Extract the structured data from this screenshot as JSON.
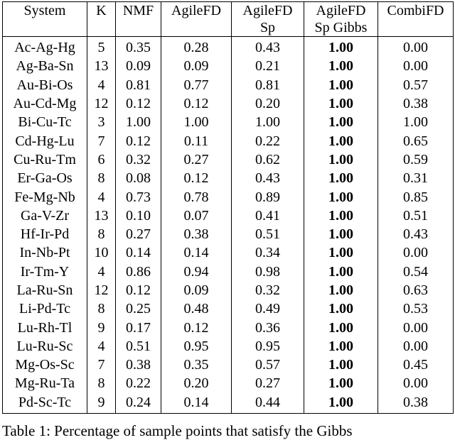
{
  "table": {
    "columns": [
      {
        "line1": "System",
        "line2": ""
      },
      {
        "line1": "K",
        "line2": ""
      },
      {
        "line1": "NMF",
        "line2": ""
      },
      {
        "line1": "AgileFD",
        "line2": ""
      },
      {
        "line1": "AgileFD",
        "line2": "Sp"
      },
      {
        "line1": "AgileFD",
        "line2": "Sp Gibbs"
      },
      {
        "line1": "CombiFD",
        "line2": ""
      }
    ],
    "rows": [
      [
        "Ac-Ag-Hg",
        "5",
        "0.35",
        "0.28",
        "0.43",
        "1.00",
        "0.00"
      ],
      [
        "Ag-Ba-Sn",
        "13",
        "0.09",
        "0.09",
        "0.21",
        "1.00",
        "0.00"
      ],
      [
        "Au-Bi-Os",
        "4",
        "0.81",
        "0.77",
        "0.81",
        "1.00",
        "0.57"
      ],
      [
        "Au-Cd-Mg",
        "12",
        "0.12",
        "0.12",
        "0.20",
        "1.00",
        "0.38"
      ],
      [
        "Bi-Cu-Tc",
        "3",
        "1.00",
        "1.00",
        "1.00",
        "1.00",
        "1.00"
      ],
      [
        "Cd-Hg-Lu",
        "7",
        "0.12",
        "0.11",
        "0.22",
        "1.00",
        "0.65"
      ],
      [
        "Cu-Ru-Tm",
        "6",
        "0.32",
        "0.27",
        "0.62",
        "1.00",
        "0.59"
      ],
      [
        "Er-Ga-Os",
        "8",
        "0.08",
        "0.12",
        "0.43",
        "1.00",
        "0.31"
      ],
      [
        "Fe-Mg-Nb",
        "4",
        "0.73",
        "0.78",
        "0.89",
        "1.00",
        "0.85"
      ],
      [
        "Ga-V-Zr",
        "13",
        "0.10",
        "0.07",
        "0.41",
        "1.00",
        "0.51"
      ],
      [
        "Hf-Ir-Pd",
        "8",
        "0.27",
        "0.38",
        "0.51",
        "1.00",
        "0.43"
      ],
      [
        "In-Nb-Pt",
        "10",
        "0.14",
        "0.14",
        "0.34",
        "1.00",
        "0.00"
      ],
      [
        "Ir-Tm-Y",
        "4",
        "0.86",
        "0.94",
        "0.98",
        "1.00",
        "0.54"
      ],
      [
        "La-Ru-Sn",
        "12",
        "0.12",
        "0.09",
        "0.32",
        "1.00",
        "0.63"
      ],
      [
        "Li-Pd-Tc",
        "8",
        "0.25",
        "0.48",
        "0.49",
        "1.00",
        "0.53"
      ],
      [
        "Lu-Rh-Tl",
        "9",
        "0.17",
        "0.12",
        "0.36",
        "1.00",
        "0.00"
      ],
      [
        "Lu-Ru-Sc",
        "4",
        "0.51",
        "0.95",
        "0.95",
        "1.00",
        "0.00"
      ],
      [
        "Mg-Os-Sc",
        "7",
        "0.38",
        "0.35",
        "0.57",
        "1.00",
        "0.45"
      ],
      [
        "Mg-Ru-Ta",
        "8",
        "0.22",
        "0.20",
        "0.27",
        "1.00",
        "0.00"
      ],
      [
        "Pd-Sc-Tc",
        "9",
        "0.24",
        "0.14",
        "0.44",
        "1.00",
        "0.38"
      ]
    ]
  },
  "caption": "Table 1: Percentage of sample points that satisfy the Gibbs"
}
